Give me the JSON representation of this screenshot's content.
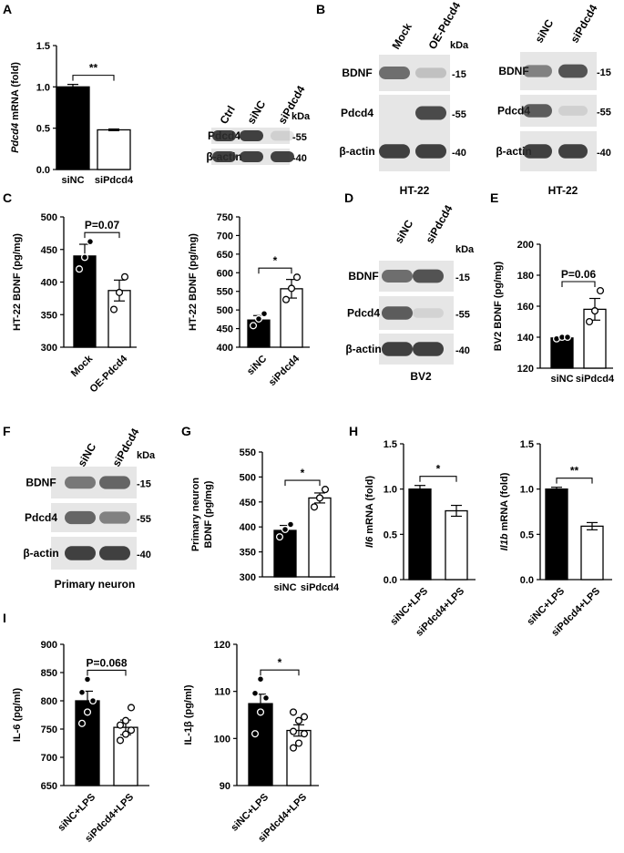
{
  "colors": {
    "filled_bar": "#000000",
    "open_bar": "#ffffff",
    "blot_band": "#2e2e2e",
    "blot_bg": "#e6e6e6"
  },
  "panels": {
    "A": "A",
    "B": "B",
    "C": "C",
    "D": "D",
    "E": "E",
    "F": "F",
    "G": "G",
    "H": "H",
    "I": "I"
  },
  "chart_data": [
    {
      "id": "A-chart",
      "panel": "A",
      "type": "bar",
      "categories": [
        "siNC",
        "siPdcd4"
      ],
      "values": [
        1.0,
        0.48
      ],
      "errors": [
        0.03,
        0.01
      ],
      "ylabel_italic": "Pdcd4",
      "ylabel_rest": " mRNA (fold)",
      "ylim": [
        0,
        1.5
      ],
      "yticks": [
        "0.0",
        "0.5",
        "1.0",
        "1.5"
      ],
      "yticks_num": [
        0,
        0.5,
        1.0,
        1.5
      ],
      "fills": [
        "black",
        "white"
      ],
      "points": [
        [],
        []
      ],
      "significance": "**",
      "rotate_x": false
    },
    {
      "id": "C1-chart",
      "panel": "C",
      "type": "bar",
      "categories": [
        "Mock",
        "OE-Pdcd4"
      ],
      "values": [
        440,
        387
      ],
      "errors": [
        18,
        16
      ],
      "ylabel_rest": "HT-22 BDNF (pg/mg)",
      "ylim": [
        300,
        500
      ],
      "yticks": [
        "300",
        "350",
        "400",
        "450",
        "500"
      ],
      "yticks_num": [
        300,
        350,
        400,
        450,
        500
      ],
      "fills": [
        "black",
        "white"
      ],
      "points": [
        [
          420,
          438,
          462
        ],
        [
          358,
          384,
          408
        ]
      ],
      "significance": "P=0.07",
      "rotate_x": true
    },
    {
      "id": "C2-chart",
      "panel": "C",
      "type": "bar",
      "categories": [
        "siNC",
        "siPdcd4"
      ],
      "values": [
        473,
        557
      ],
      "errors": [
        12,
        25
      ],
      "ylabel_rest": "HT-22 BDNF (pg/mg)",
      "ylim": [
        400,
        750
      ],
      "yticks": [
        "400",
        "450",
        "500",
        "550",
        "600",
        "650",
        "700",
        "750"
      ],
      "yticks_num": [
        400,
        450,
        500,
        550,
        600,
        650,
        700,
        750
      ],
      "fills": [
        "black",
        "white"
      ],
      "points": [
        [
          458,
          476,
          490
        ],
        [
          528,
          558,
          588
        ]
      ],
      "significance": "*",
      "rotate_x": true
    },
    {
      "id": "E-chart",
      "panel": "E",
      "type": "bar",
      "categories": [
        "siNC",
        "siPdcd4"
      ],
      "values": [
        139.5,
        158
      ],
      "errors": [
        1,
        7
      ],
      "ylabel_rest": "BV2 BDNF (pg/mg)",
      "ylim": [
        120,
        200
      ],
      "yticks": [
        "120",
        "140",
        "160",
        "180",
        "200"
      ],
      "yticks_num": [
        120,
        140,
        160,
        180,
        200
      ],
      "fills": [
        "black",
        "white"
      ],
      "points": [
        [
          139,
          140,
          140
        ],
        [
          150,
          157,
          170
        ]
      ],
      "significance": "P=0.06",
      "rotate_x": false
    },
    {
      "id": "G-chart",
      "panel": "G",
      "type": "bar",
      "categories": [
        "siNC",
        "siPdcd4"
      ],
      "values": [
        393,
        458
      ],
      "errors": [
        10,
        10
      ],
      "ylabel_line1": "Primary neuron",
      "ylabel_line2": "BDNF  (pg/mg)",
      "ylim": [
        300,
        550
      ],
      "yticks": [
        "300",
        "350",
        "400",
        "450",
        "500",
        "550"
      ],
      "yticks_num": [
        300,
        350,
        400,
        450,
        500,
        550
      ],
      "fills": [
        "black",
        "white"
      ],
      "points": [
        [
          380,
          395,
          405
        ],
        [
          440,
          458,
          475
        ]
      ],
      "significance": "*",
      "rotate_x": false
    },
    {
      "id": "H1-chart",
      "panel": "H",
      "type": "bar",
      "categories": [
        "siNC+LPS",
        "siPdcd4+LPS"
      ],
      "values": [
        1.0,
        0.76
      ],
      "errors": [
        0.04,
        0.06
      ],
      "ylabel_italic": "Il6",
      "ylabel_rest": " mRNA (fold)",
      "ylim": [
        0,
        1.5
      ],
      "yticks": [
        "0.0",
        "0.5",
        "1.0",
        "1.5"
      ],
      "yticks_num": [
        0,
        0.5,
        1.0,
        1.5
      ],
      "fills": [
        "black",
        "white"
      ],
      "points": [
        [],
        []
      ],
      "significance": "*",
      "rotate_x": true
    },
    {
      "id": "H2-chart",
      "panel": "H",
      "type": "bar",
      "categories": [
        "siNC+LPS",
        "siPdcd4+LPS"
      ],
      "values": [
        1.0,
        0.59
      ],
      "errors": [
        0.02,
        0.04
      ],
      "ylabel_italic": "Il1b",
      "ylabel_rest": " mRNA (fold)",
      "ylim": [
        0,
        1.5
      ],
      "yticks": [
        "0.0",
        "0.5",
        "1.0",
        "1.5"
      ],
      "yticks_num": [
        0,
        0.5,
        1.0,
        1.5
      ],
      "fills": [
        "black",
        "white"
      ],
      "points": [
        [],
        []
      ],
      "significance": "**",
      "rotate_x": true
    },
    {
      "id": "I1-chart",
      "panel": "I",
      "type": "bar",
      "categories": [
        "siNC+LPS",
        "siPdcd4+LPS"
      ],
      "values": [
        800,
        753
      ],
      "errors": [
        17,
        13
      ],
      "ylabel_rest": "IL-6 (pg/ml)",
      "ylim": [
        650,
        900
      ],
      "yticks": [
        "650",
        "700",
        "750",
        "800",
        "850",
        "900"
      ],
      "yticks_num": [
        650,
        700,
        750,
        800,
        850,
        900
      ],
      "fills": [
        "black",
        "white"
      ],
      "points": [
        [
          760,
          780,
          800,
          815,
          838
        ],
        [
          730,
          741,
          748,
          757,
          765,
          788
        ]
      ],
      "significance": "P=0.068",
      "rotate_x": true
    },
    {
      "id": "I2-chart",
      "panel": "I",
      "type": "bar",
      "categories": [
        "siNC+LPS",
        "siPdcd4+LPS"
      ],
      "values": [
        107.4,
        101.7
      ],
      "errors": [
        2.0,
        1.2
      ],
      "ylabel_rest": "IL-1β (pg/ml)",
      "ylim": [
        90,
        120
      ],
      "yticks": [
        "90",
        "100",
        "110",
        "120"
      ],
      "yticks_num": [
        90,
        100,
        110,
        120
      ],
      "fills": [
        "black",
        "white"
      ],
      "points": [
        [
          101,
          105.6,
          108.6,
          109.6,
          112.6
        ],
        [
          98,
          99,
          101,
          101.5,
          103.8,
          104.6,
          105.6
        ]
      ],
      "significance": "*",
      "rotate_x": true
    }
  ],
  "blots": [
    {
      "id": "A-blot",
      "panel": "A",
      "columns": [
        "Ctrl",
        "siNC",
        "siPdcd4"
      ],
      "kda": "kDa",
      "rows": [
        {
          "label": "Pdcd4",
          "mw": "-55",
          "intensity": [
            0.9,
            0.9,
            0.12
          ]
        },
        {
          "label": "β-actin",
          "mw": "-40",
          "intensity": [
            0.9,
            0.9,
            0.9
          ]
        }
      ]
    },
    {
      "id": "B1-blot",
      "panel": "B",
      "columns": [
        "Mock",
        "OE-Pdcd4"
      ],
      "kda": "kDa",
      "caption": "HT-22",
      "rows": [
        {
          "label": "BDNF",
          "mw": "-15",
          "intensity": [
            0.65,
            0.2
          ]
        },
        {
          "label": "Pdcd4",
          "mw": "-55",
          "intensity": [
            0.0,
            0.85
          ]
        },
        {
          "label": "β-actin",
          "mw": "-40",
          "intensity": [
            0.9,
            0.9
          ]
        }
      ]
    },
    {
      "id": "B2-blot",
      "panel": "B",
      "columns": [
        "siNC",
        "siPdcd4"
      ],
      "caption": "HT-22",
      "rows": [
        {
          "label": "BDNF",
          "mw": "-15",
          "intensity": [
            0.55,
            0.8
          ]
        },
        {
          "label": "Pdcd4",
          "mw": "-55",
          "intensity": [
            0.75,
            0.12
          ]
        },
        {
          "label": "β-actin",
          "mw": "-40",
          "intensity": [
            0.9,
            0.9
          ]
        }
      ]
    },
    {
      "id": "D-blot",
      "panel": "D",
      "columns": [
        "siNC",
        "siPdcd4"
      ],
      "kda": "kDa",
      "caption": "BV2",
      "rows": [
        {
          "label": "BDNF",
          "mw": "-15",
          "intensity": [
            0.65,
            0.8
          ]
        },
        {
          "label": "Pdcd4",
          "mw": "-55",
          "intensity": [
            0.75,
            0.1
          ]
        },
        {
          "label": "β-actin",
          "mw": "-40",
          "intensity": [
            0.9,
            0.9
          ]
        }
      ]
    },
    {
      "id": "F-blot",
      "panel": "F",
      "columns": [
        "siNC",
        "siPdcd4"
      ],
      "kda": "kDa",
      "caption": "Primary neuron",
      "rows": [
        {
          "label": "BDNF",
          "mw": "-15",
          "intensity": [
            0.6,
            0.7
          ]
        },
        {
          "label": "Pdcd4",
          "mw": "-55",
          "intensity": [
            0.7,
            0.55
          ]
        },
        {
          "label": "β-actin",
          "mw": "-40",
          "intensity": [
            0.9,
            0.9
          ]
        }
      ]
    }
  ]
}
